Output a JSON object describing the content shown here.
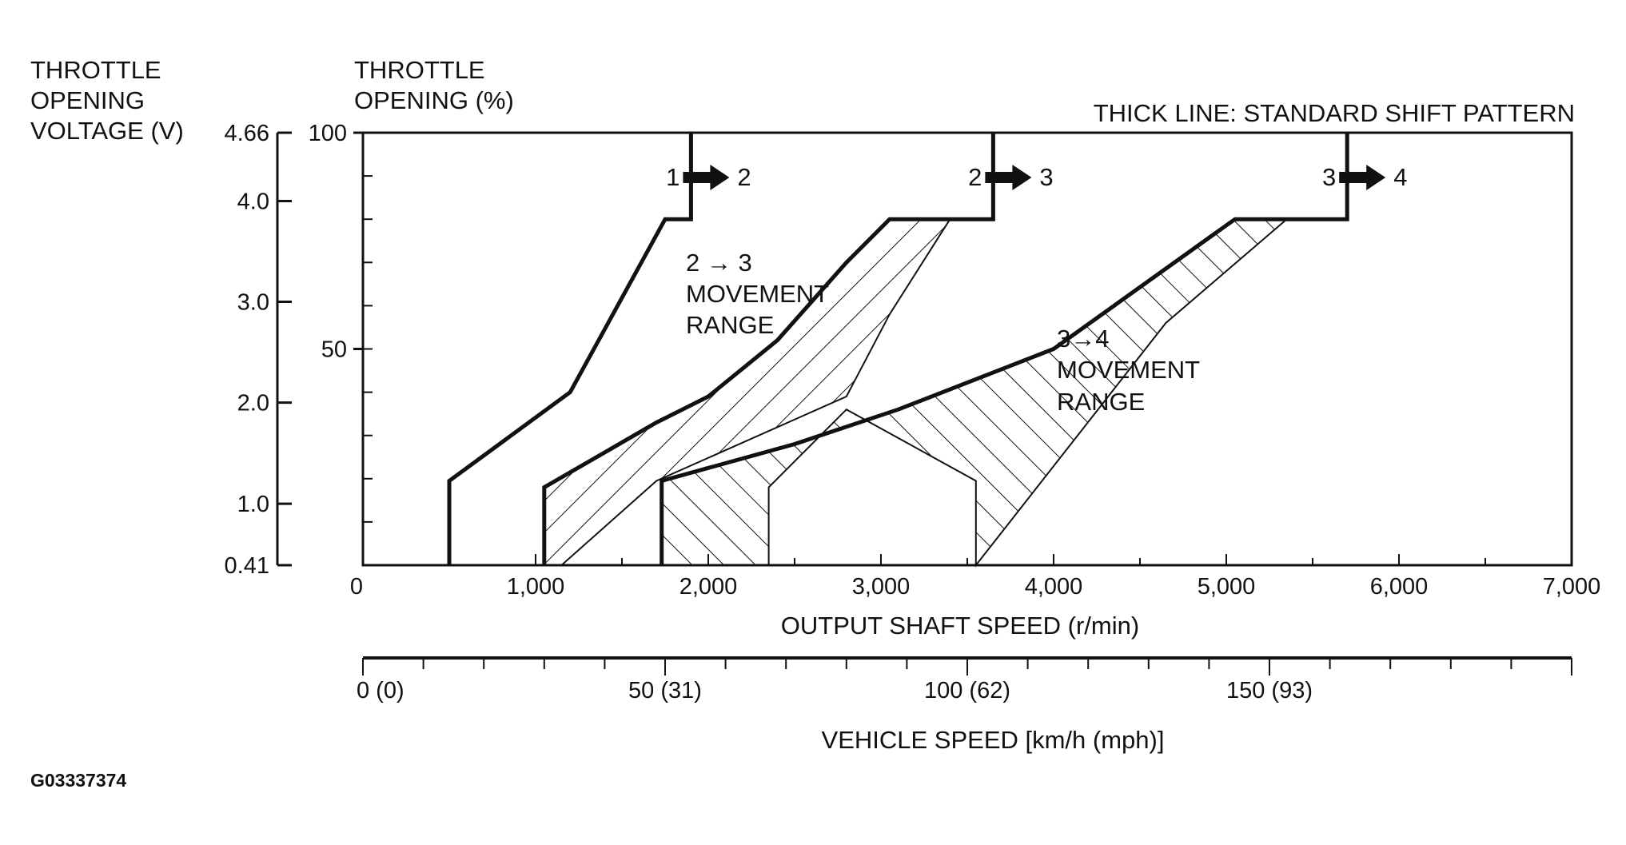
{
  "chart_data": {
    "type": "line",
    "note": "THICK LINE: STANDARD SHIFT PATTERN",
    "figure_code": "G03337374",
    "x_axis": {
      "label": "OUTPUT SHAFT SPEED (r/min)",
      "range": [
        0,
        7000
      ],
      "tick_labels": [
        "0",
        "1,000",
        "2,000",
        "3,000",
        "4,000",
        "5,000",
        "6,000",
        "7,000"
      ],
      "tick_values": [
        0,
        1000,
        2000,
        3000,
        4000,
        5000,
        6000,
        7000
      ]
    },
    "x2_axis": {
      "label": "VEHICLE SPEED [km/h (mph)]",
      "tick_labels": [
        "0 (0)",
        "50 (31)",
        "100 (62)",
        "150 (93)"
      ],
      "tick_values_rpm": [
        0,
        1750,
        3500,
        5250
      ]
    },
    "y_axis_percent": {
      "label_line1": "THROTTLE",
      "label_line2": "OPENING (%)",
      "range": [
        0,
        100
      ],
      "tick_labels": [
        "100",
        "50"
      ],
      "tick_values": [
        100,
        50
      ]
    },
    "y_axis_voltage": {
      "label_line1": "THROTTLE",
      "label_line2": "OPENING",
      "label_line3": "VOLTAGE (V)",
      "tick_labels": [
        "4.66",
        "4.0",
        "3.0",
        "2.0",
        "1.0",
        "0.41"
      ],
      "tick_values_percent": [
        100,
        84.2,
        60.9,
        37.6,
        14.2,
        0
      ]
    },
    "shift_lines": [
      {
        "label_from": "1",
        "label_to": "2",
        "points": [
          [
            500,
            0
          ],
          [
            500,
            19.5
          ],
          [
            1200,
            40
          ],
          [
            1750,
            80
          ],
          [
            1900,
            80
          ],
          [
            1900,
            100
          ]
        ]
      },
      {
        "label_from": "2",
        "label_to": "3",
        "points": [
          [
            1050,
            0
          ],
          [
            1050,
            18
          ],
          [
            1700,
            33
          ],
          [
            2000,
            39
          ],
          [
            2400,
            52
          ],
          [
            2800,
            70
          ],
          [
            3050,
            80
          ],
          [
            3650,
            80
          ],
          [
            3650,
            100
          ]
        ]
      },
      {
        "label_from": "3",
        "label_to": "4",
        "points": [
          [
            1730,
            0
          ],
          [
            1730,
            19.5
          ],
          [
            2500,
            28
          ],
          [
            3100,
            36
          ],
          [
            4000,
            50
          ],
          [
            5050,
            80
          ],
          [
            5700,
            80
          ],
          [
            5700,
            100
          ]
        ]
      }
    ],
    "movement_ranges": [
      {
        "label_line1": "2 → 3",
        "label_line2": "MOVEMENT",
        "label_line3": "RANGE",
        "boundary_right": [
          [
            1150,
            0
          ],
          [
            1700,
            19.5
          ],
          [
            2800,
            39
          ],
          [
            3050,
            58
          ],
          [
            3400,
            80
          ]
        ]
      },
      {
        "label_line1": "3→4",
        "label_line2": "MOVEMENT",
        "label_line3": "RANGE",
        "boundary_right": [
          [
            2350,
            0
          ],
          [
            2350,
            18
          ],
          [
            2800,
            36
          ],
          [
            3550,
            19.5
          ],
          [
            3550,
            0
          ],
          [
            4650,
            56
          ],
          [
            5350,
            80
          ]
        ]
      }
    ]
  }
}
